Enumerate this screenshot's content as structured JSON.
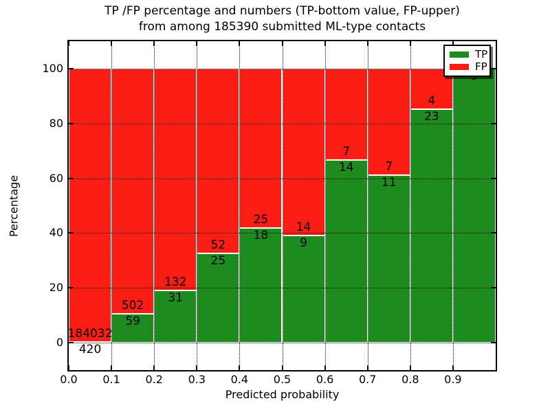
{
  "title": {
    "line1": "TP /FP percentage and numbers (TP-bottom value, FP-upper)",
    "line2": "from among 185390 submitted ML-type contacts"
  },
  "axes": {
    "x_label": "Predicted probability",
    "y_label": "Percentage",
    "x_tick_labels": [
      "0.0",
      "0.1",
      "0.2",
      "0.3",
      "0.4",
      "0.5",
      "0.6",
      "0.7",
      "0.8",
      "0.9"
    ],
    "y_tick_labels": [
      "0",
      "20",
      "40",
      "60",
      "80",
      "100"
    ]
  },
  "legend": {
    "items": [
      {
        "label": "TP",
        "color": "#1E8B1E"
      },
      {
        "label": "FP",
        "color": "#FC1D14"
      }
    ]
  },
  "colors": {
    "tp": "#1E8B1E",
    "fp": "#FC1D14",
    "grid": "#000000",
    "text": "#000000"
  },
  "chart_data": {
    "type": "bar",
    "stacked": true,
    "title": "TP /FP percentage and numbers (TP-bottom value, FP-upper) from among 185390 submitted ML-type contacts",
    "xlabel": "Predicted probability",
    "ylabel": "Percentage",
    "xlim": [
      0.0,
      1.0
    ],
    "ylim": [
      -10,
      110
    ],
    "grid": true,
    "legend_position": "upper right",
    "bin_width": 0.1,
    "bin_starts": [
      0.0,
      0.1,
      0.2,
      0.3,
      0.4,
      0.5,
      0.6,
      0.7,
      0.8,
      0.9
    ],
    "x_tick_values": [
      0.0,
      0.1,
      0.2,
      0.3,
      0.4,
      0.5,
      0.6,
      0.7,
      0.8,
      0.9
    ],
    "y_tick_values": [
      0,
      20,
      40,
      60,
      80,
      100
    ],
    "series": [
      {
        "name": "TP",
        "color": "#1E8B1E",
        "counts": [
          420,
          59,
          31,
          25,
          18,
          9,
          14,
          11,
          23,
          5
        ]
      },
      {
        "name": "FP",
        "color": "#FC1D14",
        "counts": [
          184032,
          502,
          132,
          52,
          25,
          14,
          7,
          7,
          4,
          0
        ]
      }
    ]
  }
}
